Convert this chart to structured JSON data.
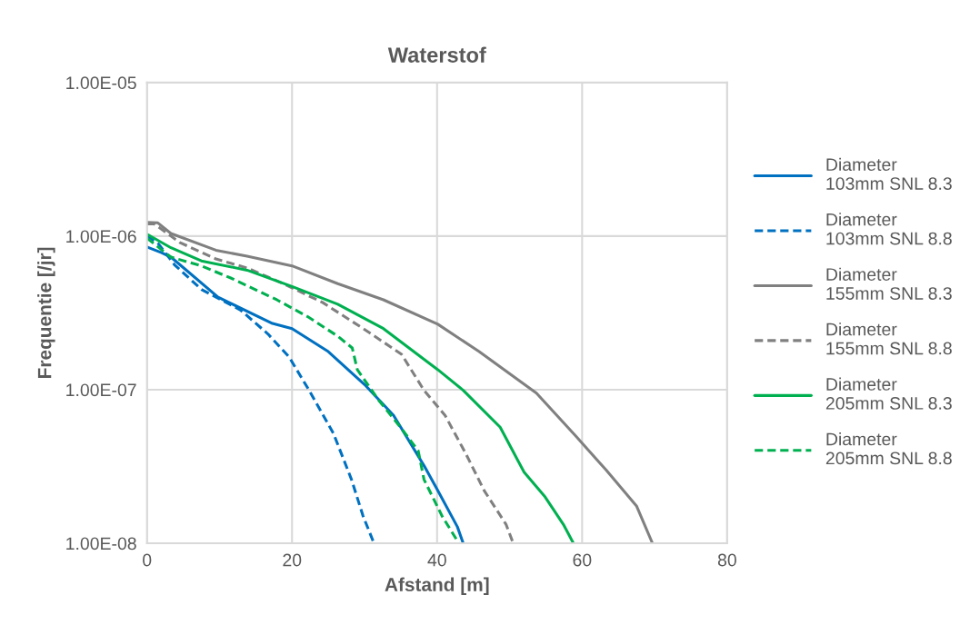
{
  "chart_data": {
    "type": "line",
    "title": "Waterstof",
    "xlabel": "Afstand [m]",
    "ylabel": "Frequentie [/jr]",
    "log": "y",
    "xlim": [
      0,
      80
    ],
    "xticks": [
      0,
      20,
      40,
      60,
      80
    ],
    "ylim": [
      1e-08,
      1e-05
    ],
    "yticks": [
      {
        "value": 1e-08,
        "label": "1.00E-08"
      },
      {
        "value": 1e-07,
        "label": "1.00E-07"
      },
      {
        "value": 1e-06,
        "label": "1.00E-06"
      },
      {
        "value": 1e-05,
        "label": "1.00E-05"
      }
    ],
    "grid": true,
    "legend": "right",
    "marker": "none",
    "series": [
      {
        "name": "Diameter\n103mm SNL 8.3",
        "color": "#0070c0",
        "line_style": "solid",
        "x": [
          0,
          2,
          3.3,
          9.8,
          17.3,
          20,
          25,
          30,
          34,
          38.2,
          40.1,
          42.8,
          43.6
        ],
        "values": [
          8.5e-07,
          7.8e-07,
          7.3e-07,
          4e-07,
          2.7e-07,
          2.5e-07,
          1.77e-07,
          1.08e-07,
          6.8e-08,
          3.2e-08,
          2.2e-08,
          1.28e-08,
          1e-08
        ]
      },
      {
        "name": "Diameter\n103mm SNL 8.8",
        "color": "#0070c0",
        "line_style": "dashed",
        "x": [
          0,
          1.5,
          3.8,
          7.5,
          12.9,
          16.7,
          19.6,
          22.3,
          25.7,
          28.2,
          29.8,
          31.3
        ],
        "values": [
          1e-06,
          9e-07,
          6.5e-07,
          4.5e-07,
          3.3e-07,
          2.3e-07,
          1.63e-07,
          1e-07,
          5.2e-08,
          2.6e-08,
          1.5e-08,
          1e-08
        ]
      },
      {
        "name": "Diameter\n155mm SNL 8.3",
        "color": "#808080",
        "line_style": "solid",
        "x": [
          0,
          1.5,
          3.3,
          9.5,
          13.8,
          20,
          26.3,
          32.6,
          40.1,
          45.8,
          53.7,
          59.1,
          63.3,
          67.5,
          69.7
        ],
        "values": [
          1.23e-06,
          1.22e-06,
          1.04e-06,
          8.1e-07,
          7.4e-07,
          6.4e-07,
          4.9e-07,
          3.85e-07,
          2.67e-07,
          1.77e-07,
          9.5e-08,
          5e-08,
          3e-08,
          1.75e-08,
          1e-08
        ]
      },
      {
        "name": "Diameter\n155mm SNL 8.8",
        "color": "#808080",
        "line_style": "dashed",
        "x": [
          0,
          1,
          4.5,
          9.5,
          13.8,
          18.8,
          24.2,
          30.1,
          35.1,
          38.2,
          41.1,
          44,
          46.5,
          49.5,
          50.5
        ],
        "values": [
          1.2e-06,
          1.2e-06,
          9.1e-07,
          7.1e-07,
          6.2e-07,
          4.9e-07,
          3.7e-07,
          2.45e-07,
          1.7e-07,
          9.9e-08,
          6.8e-08,
          3.8e-08,
          2.2e-08,
          1.33e-08,
          1e-08
        ]
      },
      {
        "name": "Diameter\n205mm SNL 8.3",
        "color": "#00b050",
        "line_style": "solid",
        "x": [
          0,
          3.3,
          7.5,
          13.8,
          20,
          26.3,
          32.6,
          40.1,
          43.6,
          48.7,
          52,
          54.9,
          57.4,
          58.8
        ],
        "values": [
          1.03e-06,
          8.4e-07,
          6.9e-07,
          6e-07,
          4.7e-07,
          3.6e-07,
          2.5e-07,
          1.35e-07,
          9.9e-08,
          5.7e-08,
          2.9e-08,
          2e-08,
          1.33e-08,
          1e-08
        ]
      },
      {
        "name": "Diameter\n205mm SNL 8.8",
        "color": "#00b050",
        "line_style": "dashed",
        "x": [
          0,
          3.3,
          7.5,
          11.7,
          17.9,
          22.1,
          26.3,
          28.3,
          29,
          31.9,
          35.2,
          37.4,
          38.2,
          40.7,
          43
        ],
        "values": [
          9.7e-07,
          7.3e-07,
          6.4e-07,
          5.3e-07,
          3.85e-07,
          3e-07,
          2.23e-07,
          1.87e-07,
          1.35e-07,
          8.6e-08,
          5.5e-08,
          4e-08,
          2.6e-08,
          1.5e-08,
          1e-08
        ]
      }
    ]
  }
}
